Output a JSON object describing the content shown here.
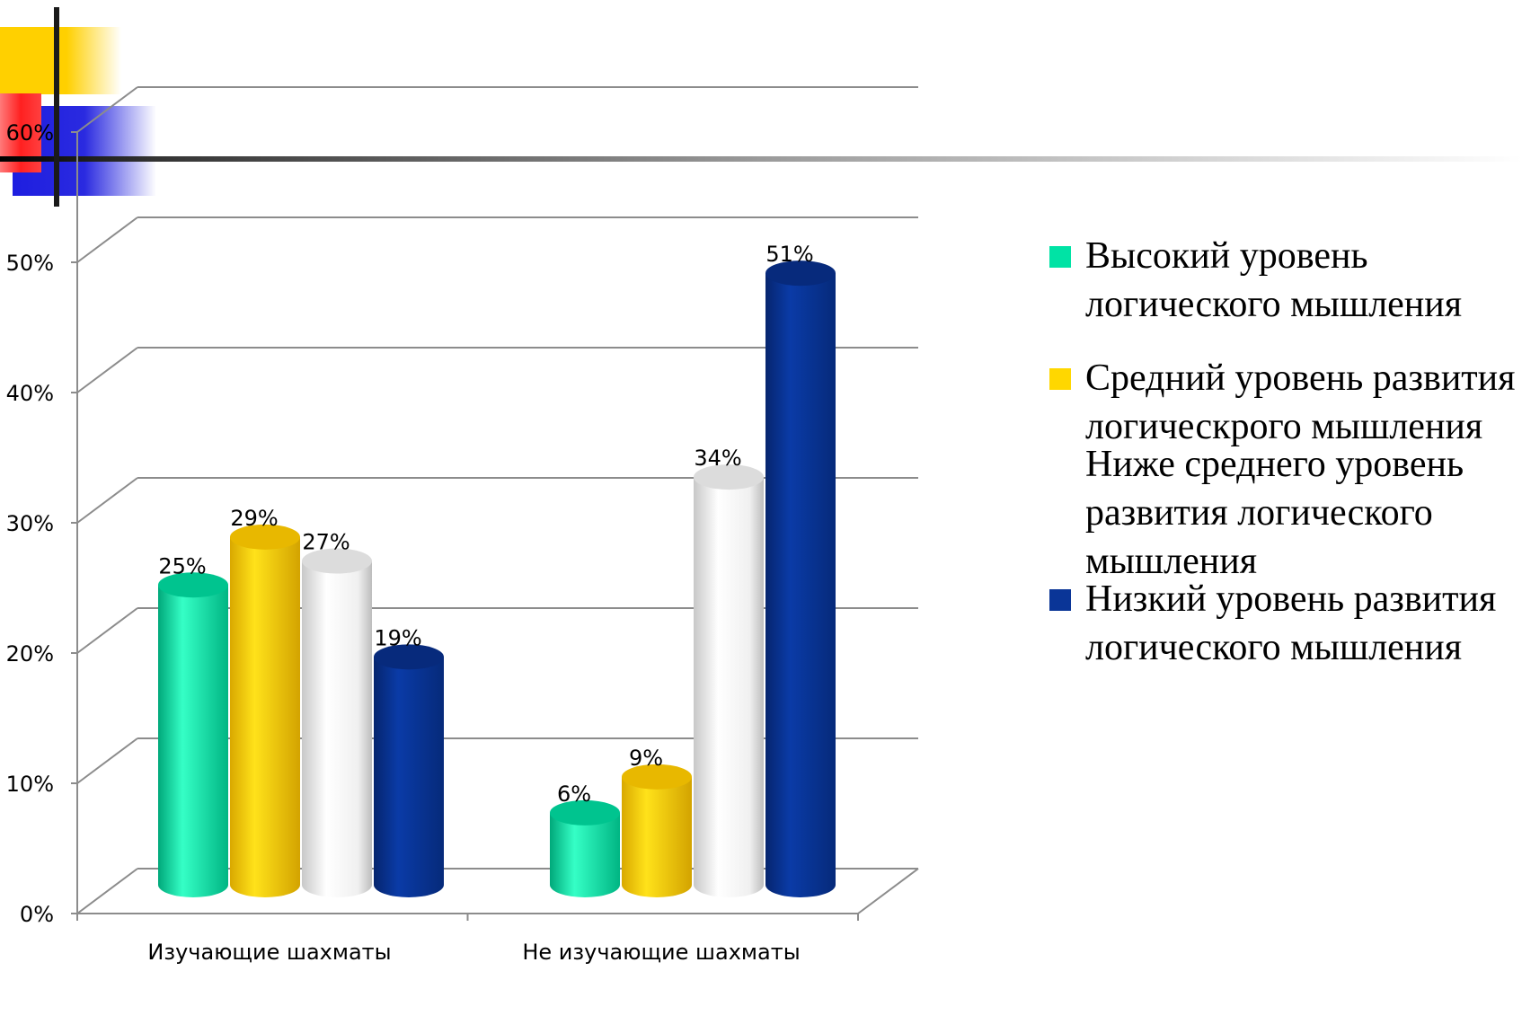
{
  "chart_data": {
    "type": "bar",
    "categories": [
      "Изучающие шахматы",
      "Не изучающие шахматы"
    ],
    "series": [
      {
        "name": "Высокий уровень логического мышления",
        "values": [
          25,
          6
        ],
        "color": "#00e3a5"
      },
      {
        "name": "Средний уровень развития логическрого мышления",
        "values": [
          29,
          9
        ],
        "color": "#ffd700"
      },
      {
        "name": "Ниже среднего уровень развития логического мышления",
        "values": [
          27,
          34
        ],
        "color": "#ffffff"
      },
      {
        "name": "Низкий уровень развития логического мышления",
        "values": [
          19,
          51
        ],
        "color": "#0a3597"
      }
    ],
    "data_labels": [
      [
        "25%",
        "6%"
      ],
      [
        "29%",
        "9%"
      ],
      [
        "27%",
        "34%"
      ],
      [
        "19%",
        "51%"
      ]
    ],
    "yticks": [
      "0%",
      "10%",
      "20%",
      "30%",
      "40%",
      "50%",
      "60%"
    ],
    "ylim": [
      0,
      60
    ],
    "grid": true,
    "legend_position": "right"
  }
}
